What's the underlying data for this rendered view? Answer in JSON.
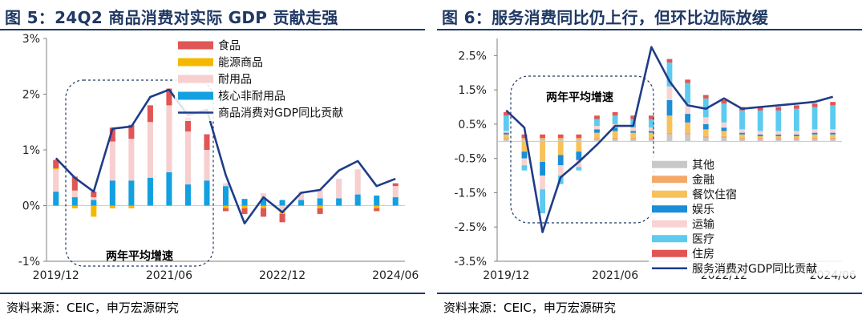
{
  "panels": [
    {
      "title": "图 5：24Q2 商品消费对实际 GDP 贡献走强",
      "source": "资料来源：CEIC，申万宏源研究",
      "annotation": "两年平均增速"
    },
    {
      "title": "图 6：服务消费同比仍上行，但环比边际放缓",
      "source": "资料来源：CEIC，申万宏源研究",
      "annotation": "两年平均增速"
    }
  ],
  "colors": {
    "title": "#1f3864",
    "line": "#1f3c88",
    "core_nondurable": "#13a0e0",
    "durable": "#f7cfcf",
    "energy": "#f5b800",
    "food": "#e05555",
    "other": "#c8c8c8",
    "finance": "#f4a96a",
    "food_accommodation": "#f8c25a",
    "entertainment": "#1a8ed6",
    "transport": "#f9d3d3",
    "medical": "#5ccbef",
    "housing": "#e25555"
  },
  "chart_data": [
    {
      "type": "bar",
      "stacked": true,
      "x_ticks": [
        "2019/12",
        "2021/06",
        "2022/12",
        "2024/06"
      ],
      "y_ticks": [
        "3%",
        "2%",
        "1%",
        "0%",
        "-1%"
      ],
      "ylim": [
        -1,
        3
      ],
      "legend_position": "top-right",
      "categories": [
        "2019Q4",
        "2020Q1",
        "2020Q2",
        "2020Q3",
        "2020Q4",
        "2021Q1",
        "2021Q2",
        "2021Q3",
        "2021Q4",
        "2022Q1",
        "2022Q2",
        "2022Q3",
        "2022Q4",
        "2023Q1",
        "2023Q2",
        "2023Q3",
        "2023Q4",
        "2024Q1",
        "2024Q2"
      ],
      "series": [
        {
          "name": "核心非耐用品",
          "color_key": "core_nondurable",
          "values": [
            0.25,
            0.15,
            0.1,
            0.45,
            0.45,
            0.5,
            0.6,
            0.38,
            0.45,
            0.35,
            0.12,
            0.12,
            0.1,
            0.1,
            0.13,
            0.13,
            0.2,
            0.18,
            0.15
          ]
        },
        {
          "name": "耐用品",
          "color_key": "durable",
          "values": [
            0.4,
            0.12,
            0.05,
            0.7,
            0.75,
            1.0,
            1.2,
            0.95,
            0.55,
            0.05,
            0.0,
            0.1,
            -0.1,
            0.15,
            0.15,
            0.35,
            0.45,
            0.0,
            0.2
          ]
        },
        {
          "name": "能源商品",
          "color_key": "energy",
          "values": [
            0.02,
            -0.05,
            -0.2,
            -0.05,
            -0.05,
            0.0,
            0.0,
            0.0,
            0.0,
            -0.05,
            -0.05,
            -0.05,
            -0.05,
            0.0,
            -0.05,
            0.0,
            0.0,
            -0.05,
            0.0
          ]
        },
        {
          "name": "食品",
          "color_key": "food",
          "values": [
            0.15,
            0.25,
            0.1,
            0.25,
            0.25,
            0.3,
            0.3,
            0.25,
            0.28,
            -0.05,
            -0.1,
            -0.15,
            -0.15,
            0.0,
            -0.1,
            0.0,
            0.0,
            -0.05,
            0.05
          ]
        }
      ],
      "line": {
        "name": "商品消费对GDP同比贡献",
        "values": [
          0.85,
          0.5,
          0.25,
          1.38,
          1.42,
          1.95,
          2.08,
          1.62,
          1.72,
          0.55,
          -0.32,
          0.15,
          -0.12,
          0.23,
          0.28,
          0.63,
          0.8,
          0.35,
          0.48
        ]
      }
    },
    {
      "type": "bar",
      "stacked": true,
      "x_ticks": [
        "2019/12",
        "2021/06",
        "2022/12",
        "2024/06"
      ],
      "y_ticks": [
        "2.5%",
        "1.5%",
        "0.5%",
        "-0.5%",
        "-1.5%",
        "-2.5%",
        "-3.5%"
      ],
      "ylim": [
        -3.5,
        3.0
      ],
      "legend_position": "bottom-right",
      "categories": [
        "2019Q4",
        "2020Q1",
        "2020Q2",
        "2020Q3",
        "2020Q4",
        "2021Q1",
        "2021Q2",
        "2021Q3",
        "2021Q4",
        "2022Q1",
        "2022Q2",
        "2022Q3",
        "2022Q4",
        "2023Q1",
        "2023Q2",
        "2023Q3",
        "2023Q4",
        "2024Q1",
        "2024Q2"
      ],
      "series": [
        {
          "name": "其他",
          "color_key": "other",
          "values": [
            0.05,
            0.05,
            0.05,
            0.05,
            0.05,
            0.05,
            0.05,
            0.05,
            0.05,
            0.2,
            0.2,
            0.1,
            0.1,
            0.05,
            0.05,
            0.05,
            0.05,
            0.05,
            0.05
          ]
        },
        {
          "name": "金融",
          "color_key": "finance",
          "values": [
            0.05,
            0.05,
            0.05,
            0.05,
            0.05,
            0.05,
            0.05,
            0.05,
            0.05,
            0.05,
            0.05,
            0.05,
            0.05,
            0.05,
            0.05,
            0.05,
            0.05,
            0.05,
            0.05
          ]
        },
        {
          "name": "餐饮住宿",
          "color_key": "food_accommodation",
          "values": [
            0.1,
            -0.3,
            -0.6,
            -0.4,
            -0.3,
            0.15,
            0.2,
            0.15,
            0.15,
            0.5,
            0.3,
            0.2,
            0.15,
            0.1,
            0.05,
            0.05,
            0.05,
            0.1,
            0.1
          ]
        },
        {
          "name": "娱乐",
          "color_key": "entertainment",
          "values": [
            0.05,
            -0.2,
            -0.4,
            -0.3,
            -0.25,
            0.1,
            0.1,
            0.05,
            0.05,
            0.45,
            0.25,
            0.15,
            0.1,
            0.05,
            0.05,
            0.05,
            0.05,
            0.05,
            0.05
          ]
        },
        {
          "name": "运输",
          "color_key": "transport",
          "values": [
            0.05,
            -0.2,
            -0.4,
            -0.3,
            -0.2,
            0.1,
            0.1,
            0.1,
            0.1,
            0.4,
            0.3,
            0.2,
            0.15,
            0.1,
            0.1,
            0.1,
            0.1,
            0.1,
            0.1
          ]
        },
        {
          "name": "医疗",
          "color_key": "medical",
          "values": [
            0.45,
            -0.15,
            -0.7,
            -0.25,
            -0.1,
            0.2,
            0.25,
            0.25,
            0.25,
            0.7,
            0.6,
            0.55,
            0.55,
            0.55,
            0.6,
            0.6,
            0.65,
            0.65,
            0.7
          ]
        },
        {
          "name": "住房",
          "color_key": "housing",
          "values": [
            0.1,
            0.1,
            0.1,
            0.1,
            0.1,
            0.1,
            0.1,
            0.1,
            0.1,
            0.1,
            0.1,
            0.1,
            0.1,
            0.1,
            0.1,
            0.1,
            0.1,
            0.1,
            0.1
          ]
        }
      ],
      "line": {
        "name": "服务消费对GDP同比贡献",
        "values": [
          0.9,
          0.4,
          -2.65,
          -1.05,
          -0.6,
          -0.1,
          0.45,
          0.45,
          2.75,
          1.75,
          1.05,
          0.95,
          1.25,
          0.95,
          1.0,
          1.05,
          1.1,
          1.15,
          1.3
        ]
      }
    }
  ]
}
